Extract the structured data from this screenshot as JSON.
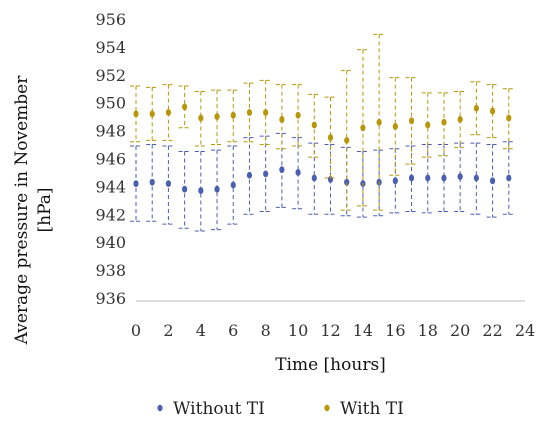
{
  "chart_data": {
    "type": "scatter",
    "xlabel": "Time [hours]",
    "ylabel_lines": [
      "Average pressure in November",
      "[hPa]"
    ],
    "xlim": [
      0,
      24
    ],
    "ylim": [
      936,
      956
    ],
    "xticks": [
      0,
      2,
      4,
      6,
      8,
      10,
      12,
      14,
      16,
      18,
      20,
      22,
      24
    ],
    "yticks": [
      936,
      938,
      940,
      942,
      944,
      946,
      948,
      950,
      952,
      954,
      956
    ],
    "grid": false,
    "legend_position": "bottom",
    "series": [
      {
        "name": "Without TI",
        "color": "#4a5fb0",
        "x": [
          0,
          1,
          2,
          3,
          4,
          5,
          6,
          7,
          8,
          9,
          10,
          11,
          12,
          13,
          14,
          15,
          16,
          17,
          18,
          19,
          20,
          21,
          22,
          23
        ],
        "y": [
          944.2,
          944.3,
          944.2,
          943.8,
          943.7,
          943.8,
          944.1,
          944.8,
          944.9,
          945.2,
          945.0,
          944.6,
          944.5,
          944.3,
          944.2,
          944.3,
          944.4,
          944.6,
          944.6,
          944.6,
          944.7,
          944.6,
          944.4,
          944.6
        ],
        "err_low": [
          941.5,
          941.5,
          941.3,
          941.0,
          940.8,
          940.9,
          941.3,
          942.0,
          942.2,
          942.5,
          942.4,
          942.0,
          942.0,
          941.9,
          941.8,
          941.9,
          942.1,
          942.2,
          942.1,
          942.2,
          942.2,
          942.0,
          941.8,
          942.0
        ],
        "err_high": [
          946.9,
          947.0,
          946.9,
          946.5,
          946.5,
          946.6,
          946.9,
          947.5,
          947.6,
          947.8,
          947.5,
          947.1,
          947.0,
          946.8,
          946.5,
          946.6,
          946.7,
          946.9,
          947.0,
          947.0,
          947.1,
          947.1,
          947.0,
          947.2
        ]
      },
      {
        "name": "With TI",
        "color": "#b8960a",
        "x": [
          0,
          1,
          2,
          3,
          4,
          5,
          6,
          7,
          8,
          9,
          10,
          11,
          12,
          13,
          14,
          15,
          16,
          17,
          18,
          19,
          20,
          21,
          22,
          23
        ],
        "y": [
          949.2,
          949.2,
          949.3,
          949.7,
          948.9,
          949.0,
          949.1,
          949.3,
          949.3,
          948.8,
          949.1,
          948.4,
          947.5,
          947.3,
          948.2,
          948.6,
          948.3,
          948.7,
          948.4,
          948.6,
          948.8,
          949.6,
          949.4,
          948.9
        ],
        "err_low": [
          947.2,
          947.3,
          947.3,
          948.2,
          946.9,
          947.0,
          947.2,
          947.2,
          947.0,
          946.7,
          946.9,
          946.1,
          944.6,
          942.3,
          942.6,
          942.3,
          944.8,
          945.6,
          946.1,
          946.2,
          946.8,
          947.7,
          947.5,
          946.7
        ],
        "err_high": [
          951.2,
          951.1,
          951.3,
          951.2,
          950.8,
          950.9,
          950.9,
          951.4,
          951.6,
          951.3,
          951.3,
          950.6,
          950.4,
          952.3,
          953.8,
          954.9,
          951.8,
          951.8,
          950.7,
          950.7,
          950.8,
          951.5,
          951.3,
          951.0
        ]
      }
    ]
  }
}
